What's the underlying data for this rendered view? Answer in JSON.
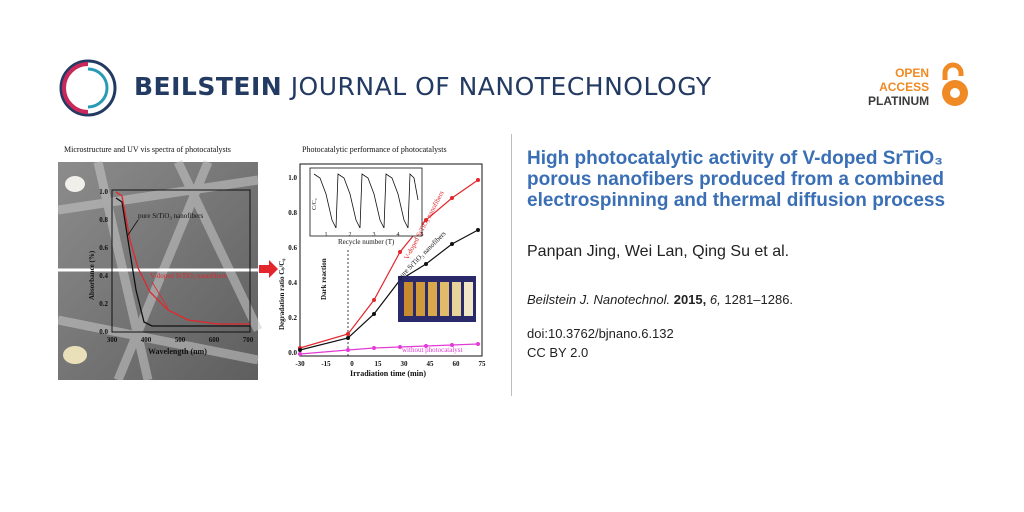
{
  "header": {
    "journal_bold": "BEILSTEIN",
    "journal_rest": "JOURNAL OF NANOTECHNOLOGY",
    "open_access": [
      "OPEN",
      "ACCESS",
      "PLATINUM"
    ]
  },
  "figure": {
    "left_panel_title": "Microstructure and UV vis spectra of photocatalysts",
    "left_ylabel": "Absorbance (%)",
    "left_xlabel": "Wavelength (nm)",
    "left_yticks": [
      "1.0",
      "0.8",
      "0.6",
      "0.4",
      "0.2",
      "0.0"
    ],
    "left_xticks": [
      "300",
      "400",
      "500",
      "600",
      "700"
    ],
    "left_label_pure": "pure SrTiO₃ nanofibers",
    "left_label_vdoped": "V-doped SrTiO₃ nanofibers",
    "right_panel_title": "Photocatalytic performance of photocatalysts",
    "right_ylabel": "Degradation ratio Cₜ/C₀",
    "right_xlabel": "Irradiation time (min)",
    "right_yticks": [
      "1.0",
      "0.8",
      "0.6",
      "0.4",
      "0.2",
      "0.0"
    ],
    "right_xticks": [
      "-30",
      "-15",
      "0",
      "15",
      "30",
      "45",
      "60",
      "75"
    ],
    "dark_reaction": "Dark reaction",
    "inset_ylabel": "C/C₀",
    "inset_xlabel": "Recycle number (T)",
    "inset_xticks": [
      "1",
      "2",
      "3",
      "4",
      "5"
    ],
    "label_vdoped": "V-doped SrTiO₃ nanofibers",
    "label_pure": "pure SrTiO₃ nanofibers",
    "label_none": "without photocatalyst",
    "colors": {
      "red": "#e3262c",
      "black": "#111111",
      "magenta": "#e23bd6"
    }
  },
  "article": {
    "title": "High photocatalytic activity of V-doped SrTiO₃ porous nanofibers produced from a combined electrospinning and thermal diffusion process",
    "authors": "Panpan Jing, Wei Lan, Qing Su et al.",
    "journal_abbrev": "Beilstein J. Nanotechnol.",
    "year": "2015,",
    "volume": "6,",
    "pages": "1281–1286.",
    "doi": "doi:10.3762/bjnano.6.132",
    "license": "CC BY 2.0"
  }
}
